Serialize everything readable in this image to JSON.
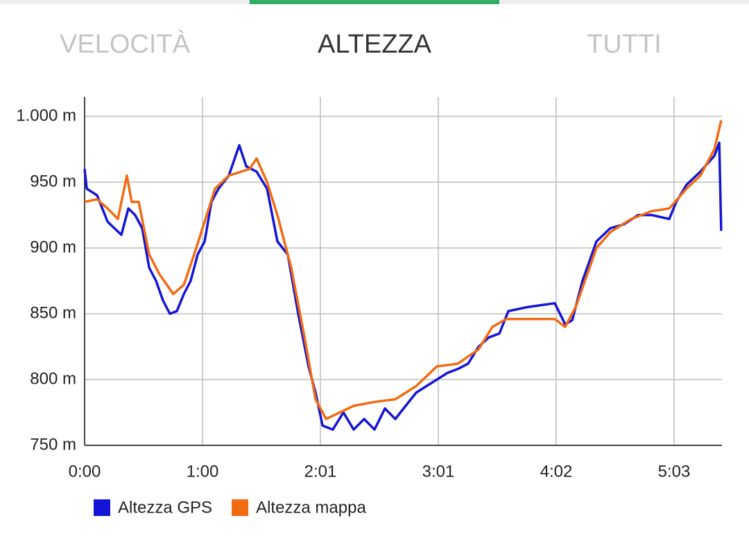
{
  "tabs": [
    "VELOCITÀ",
    "ALTEZZA",
    "TUTTI"
  ],
  "chart_data": {
    "type": "line",
    "xlim": [
      0,
      327.6
    ],
    "ylim": [
      750,
      1000
    ],
    "xticks": [
      {
        "value": 0,
        "label": "0:00"
      },
      {
        "value": 60.6,
        "label": "1:00"
      },
      {
        "value": 121.2,
        "label": "2:01"
      },
      {
        "value": 181.8,
        "label": "3:01"
      },
      {
        "value": 242.4,
        "label": "4:02"
      },
      {
        "value": 303,
        "label": "5:03"
      }
    ],
    "yticks": [
      {
        "value": 750,
        "label": "750 m"
      },
      {
        "value": 800,
        "label": "800 m"
      },
      {
        "value": 850,
        "label": "850 m"
      },
      {
        "value": 900,
        "label": "900 m"
      },
      {
        "value": 950,
        "label": "950 m"
      },
      {
        "value": 1000,
        "label": "1.000 m"
      }
    ],
    "grid": true,
    "series": [
      {
        "name": "Altezza GPS",
        "color": "#1414d6",
        "x": [
          0,
          1.1,
          6.4,
          11.8,
          15.3,
          18.9,
          22.5,
          26.0,
          29.6,
          33.2,
          36.7,
          40.3,
          43.8,
          47.4,
          51.0,
          54.5,
          58.1,
          61.7,
          65.2,
          68.8,
          74.1,
          79.5,
          83.1,
          88.4,
          93.8,
          99.1,
          104.4,
          109.8,
          115.1,
          118.7,
          122.3,
          127.6,
          133.0,
          138.3,
          143.7,
          149.0,
          154.4,
          159.7,
          165.0,
          170.4,
          175.7,
          181.1,
          186.4,
          191.8,
          197.1,
          202.5,
          207.8,
          213.2,
          217.8,
          227.4,
          241.7,
          247.0,
          250.6,
          255.9,
          263.1,
          270.2,
          277.3,
          284.5,
          291.6,
          300.5,
          304.1,
          309.4,
          316.5,
          323.7,
          326.2,
          327.2
        ],
        "values": [
          960,
          945,
          940,
          920,
          915,
          910,
          930,
          925,
          915,
          885,
          875,
          860,
          850,
          852,
          865,
          875,
          895,
          905,
          935,
          945,
          955,
          978,
          962,
          958,
          945,
          905,
          895,
          850,
          810,
          790,
          765,
          762,
          775,
          762,
          770,
          762,
          778,
          770,
          780,
          790,
          795,
          800,
          805,
          808,
          812,
          825,
          832,
          835,
          852,
          855,
          858,
          842,
          845,
          875,
          905,
          915,
          918,
          925,
          925,
          922,
          935,
          948,
          958,
          970,
          980,
          913
        ]
      },
      {
        "name": "Altezza mappa",
        "color": "#f26a12",
        "x": [
          0,
          6.4,
          11.8,
          17.1,
          21.7,
          24.2,
          27.8,
          33.2,
          38.5,
          45.6,
          51.0,
          56.3,
          61.7,
          67.0,
          74.1,
          84.8,
          88.4,
          93.8,
          99.1,
          106.2,
          113.3,
          118.7,
          124.1,
          131.2,
          138.3,
          149.0,
          159.7,
          170.4,
          181.1,
          191.8,
          202.5,
          209.6,
          216.7,
          241.7,
          247.0,
          252.4,
          263.1,
          270.2,
          280.9,
          291.6,
          300.5,
          309.4,
          316.5,
          323.7,
          327.2
        ],
        "values": [
          935,
          937,
          930,
          922,
          955,
          935,
          935,
          895,
          880,
          865,
          872,
          895,
          920,
          945,
          955,
          960,
          968,
          950,
          925,
          885,
          830,
          785,
          770,
          775,
          780,
          783,
          785,
          795,
          810,
          812,
          823,
          840,
          846,
          846,
          840,
          855,
          900,
          912,
          922,
          928,
          930,
          945,
          955,
          975,
          997
        ]
      }
    ]
  }
}
